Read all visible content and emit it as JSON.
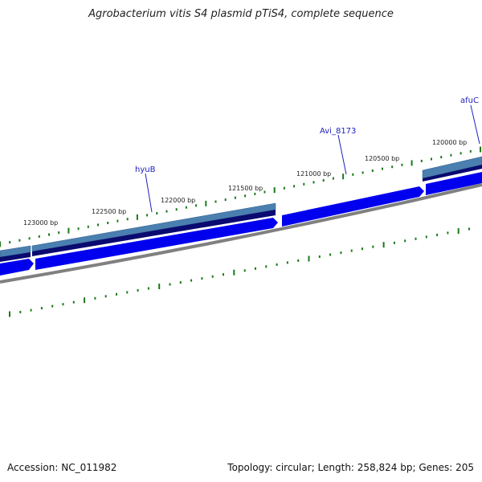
{
  "title": "Agrobacterium vitis S4 plasmid pTiS4, complete sequence",
  "accession": "Accession: NC_011982",
  "summary": "Topology: circular; Length: 258,824 bp; Genes: 205",
  "colors": {
    "cds_forward": "#0000ee",
    "gene_light": "#4a7fb0",
    "gene_dark": "#0a0a70",
    "backbone": "#808080",
    "tick": "#1a7a1a",
    "label": "#2020c0"
  },
  "scale_ticks": [
    {
      "label": "123000 bp"
    },
    {
      "label": "122500 bp"
    },
    {
      "label": "122000 bp"
    },
    {
      "label": "121500 bp"
    },
    {
      "label": "121000 bp"
    },
    {
      "label": "120500 bp"
    },
    {
      "label": "120000 bp"
    }
  ],
  "gene_labels": [
    {
      "name": "hyuB"
    },
    {
      "name": "Avi_8173"
    },
    {
      "name": "afuC"
    }
  ]
}
